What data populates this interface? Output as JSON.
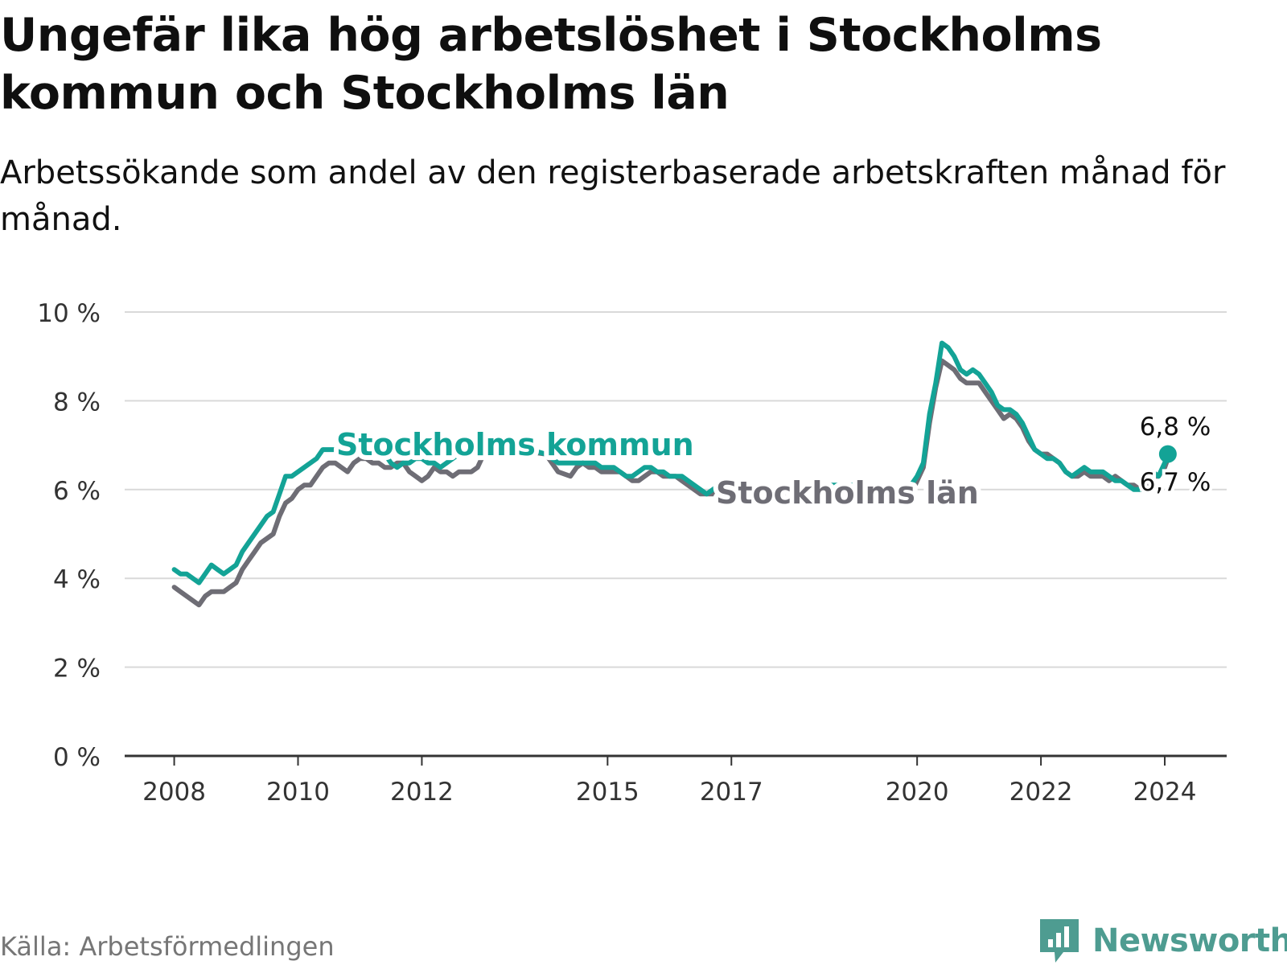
{
  "title": "Ungefär lika hög arbetslöshet i Stockholms kommun och Stockholms län",
  "subtitle": "Arbetssökande som andel av den registerbaserade arbetskraften månad för månad.",
  "source": "Källa: Arbetsförmedlingen",
  "brand": "Newsworthy",
  "colors": {
    "kommun": "#13a396",
    "lan": "#6e6d75",
    "grid": "#d9d9d9",
    "axis": "#333333"
  },
  "chart_data": {
    "type": "line",
    "title": "Ungefär lika hög arbetslöshet i Stockholms kommun och Stockholms län",
    "xlabel": "",
    "ylabel": "",
    "ylim": [
      0,
      10
    ],
    "xlim": [
      2007.2,
      2025.0
    ],
    "y_ticks": [
      0,
      2,
      4,
      6,
      8,
      10
    ],
    "y_tick_labels": [
      "0 %",
      "2 %",
      "4 %",
      "6 %",
      "8 %",
      "10 %"
    ],
    "x_ticks": [
      2008,
      2010,
      2012,
      2015,
      2017,
      2020,
      2022,
      2024
    ],
    "x_tick_labels": [
      "2008",
      "2010",
      "2012",
      "2015",
      "2017",
      "2020",
      "2022",
      "2024"
    ],
    "grid": true,
    "series": [
      {
        "name": "Stockholms kommun",
        "label": "Stockholms kommun",
        "color": "#13a396",
        "x": [
          2008.0,
          2008.1,
          2008.2,
          2008.3,
          2008.4,
          2008.5,
          2008.6,
          2008.7,
          2008.8,
          2008.9,
          2009.0,
          2009.1,
          2009.2,
          2009.3,
          2009.4,
          2009.5,
          2009.6,
          2009.7,
          2009.8,
          2009.9,
          2010.0,
          2010.1,
          2010.2,
          2010.3,
          2010.4,
          2010.5,
          2010.6,
          2010.7,
          2010.8,
          2010.9,
          2011.0,
          2011.1,
          2011.2,
          2011.3,
          2011.4,
          2011.5,
          2011.6,
          2011.7,
          2011.8,
          2011.9,
          2012.0,
          2012.1,
          2012.2,
          2012.3,
          2012.4,
          2012.5,
          2012.6,
          2012.7,
          2012.8,
          2012.9,
          2013.0,
          2013.5,
          2014.0,
          2014.2,
          2014.4,
          2014.5,
          2014.6,
          2014.7,
          2014.8,
          2014.9,
          2015.0,
          2015.1,
          2015.2,
          2015.3,
          2015.4,
          2015.5,
          2015.6,
          2015.7,
          2015.8,
          2015.9,
          2016.0,
          2016.1,
          2016.2,
          2016.3,
          2016.4,
          2016.5,
          2016.6,
          2016.7,
          2016.8,
          2016.9,
          2017.0,
          2017.5,
          2018.0,
          2018.5,
          2019.0,
          2019.5,
          2019.9,
          2020.0,
          2020.1,
          2020.2,
          2020.3,
          2020.4,
          2020.5,
          2020.6,
          2020.7,
          2020.8,
          2020.9,
          2021.0,
          2021.1,
          2021.2,
          2021.3,
          2021.4,
          2021.5,
          2021.6,
          2021.7,
          2021.8,
          2021.9,
          2022.0,
          2022.1,
          2022.2,
          2022.3,
          2022.4,
          2022.5,
          2022.6,
          2022.7,
          2022.8,
          2022.9,
          2023.0,
          2023.1,
          2023.2,
          2023.3,
          2023.4,
          2023.5,
          2023.6,
          2023.7,
          2023.8,
          2023.9,
          2024.0,
          2024.05
        ],
        "values": [
          4.2,
          4.1,
          4.1,
          4.0,
          3.9,
          4.1,
          4.3,
          4.2,
          4.1,
          4.2,
          4.3,
          4.6,
          4.8,
          5.0,
          5.2,
          5.4,
          5.5,
          5.9,
          6.3,
          6.3,
          6.4,
          6.5,
          6.6,
          6.7,
          6.9,
          6.9,
          6.9,
          6.8,
          6.9,
          7.1,
          7.2,
          7.3,
          7.1,
          7.0,
          6.8,
          6.6,
          6.5,
          6.6,
          6.6,
          6.7,
          6.7,
          6.6,
          6.6,
          6.5,
          6.6,
          6.7,
          6.8,
          6.9,
          6.9,
          7.0,
          7.0,
          7.0,
          6.8,
          6.6,
          6.6,
          6.6,
          6.6,
          6.6,
          6.6,
          6.5,
          6.5,
          6.5,
          6.4,
          6.3,
          6.3,
          6.4,
          6.5,
          6.5,
          6.4,
          6.4,
          6.3,
          6.3,
          6.3,
          6.2,
          6.1,
          6.0,
          5.9,
          6.0,
          6.1,
          6.1,
          6.1,
          6.0,
          6.0,
          6.1,
          6.1,
          6.0,
          6.1,
          6.3,
          6.6,
          7.7,
          8.4,
          9.3,
          9.2,
          9.0,
          8.7,
          8.6,
          8.7,
          8.6,
          8.4,
          8.2,
          7.9,
          7.8,
          7.8,
          7.7,
          7.5,
          7.2,
          6.9,
          6.8,
          6.7,
          6.7,
          6.6,
          6.4,
          6.3,
          6.4,
          6.5,
          6.4,
          6.4,
          6.4,
          6.3,
          6.2,
          6.2,
          6.1,
          6.0,
          6.0,
          6.2,
          6.4,
          6.3,
          6.6,
          6.8
        ]
      },
      {
        "name": "Stockholms län",
        "label": "Stockholms län",
        "color": "#6e6d75",
        "x": [
          2008.0,
          2008.1,
          2008.2,
          2008.3,
          2008.4,
          2008.5,
          2008.6,
          2008.7,
          2008.8,
          2008.9,
          2009.0,
          2009.1,
          2009.2,
          2009.3,
          2009.4,
          2009.5,
          2009.6,
          2009.7,
          2009.8,
          2009.9,
          2010.0,
          2010.1,
          2010.2,
          2010.3,
          2010.4,
          2010.5,
          2010.6,
          2010.7,
          2010.8,
          2010.9,
          2011.0,
          2011.1,
          2011.2,
          2011.3,
          2011.4,
          2011.5,
          2011.6,
          2011.7,
          2011.8,
          2011.9,
          2012.0,
          2012.1,
          2012.2,
          2012.3,
          2012.4,
          2012.5,
          2012.6,
          2012.7,
          2012.8,
          2012.9,
          2013.0,
          2013.5,
          2014.0,
          2014.2,
          2014.4,
          2014.5,
          2014.6,
          2014.7,
          2014.8,
          2014.9,
          2015.0,
          2015.1,
          2015.2,
          2015.3,
          2015.4,
          2015.5,
          2015.6,
          2015.7,
          2015.8,
          2015.9,
          2016.0,
          2016.1,
          2016.2,
          2016.3,
          2016.4,
          2016.5,
          2016.6,
          2016.7,
          2016.8,
          2016.9,
          2017.0,
          2017.5,
          2018.0,
          2018.5,
          2019.0,
          2019.5,
          2019.9,
          2020.0,
          2020.1,
          2020.2,
          2020.3,
          2020.4,
          2020.5,
          2020.6,
          2020.7,
          2020.8,
          2020.9,
          2021.0,
          2021.1,
          2021.2,
          2021.3,
          2021.4,
          2021.5,
          2021.6,
          2021.7,
          2021.8,
          2021.9,
          2022.0,
          2022.1,
          2022.2,
          2022.3,
          2022.4,
          2022.5,
          2022.6,
          2022.7,
          2022.8,
          2022.9,
          2023.0,
          2023.1,
          2023.2,
          2023.3,
          2023.4,
          2023.5,
          2023.6,
          2023.7,
          2023.8,
          2023.9,
          2024.0,
          2024.05
        ],
        "values": [
          3.8,
          3.7,
          3.6,
          3.5,
          3.4,
          3.6,
          3.7,
          3.7,
          3.7,
          3.8,
          3.9,
          4.2,
          4.4,
          4.6,
          4.8,
          4.9,
          5.0,
          5.4,
          5.7,
          5.8,
          6.0,
          6.1,
          6.1,
          6.3,
          6.5,
          6.6,
          6.6,
          6.5,
          6.4,
          6.6,
          6.7,
          6.7,
          6.6,
          6.6,
          6.5,
          6.5,
          6.6,
          6.6,
          6.4,
          6.3,
          6.2,
          6.3,
          6.5,
          6.4,
          6.4,
          6.3,
          6.4,
          6.4,
          6.4,
          6.5,
          6.8,
          6.9,
          6.8,
          6.4,
          6.3,
          6.5,
          6.6,
          6.5,
          6.5,
          6.4,
          6.4,
          6.4,
          6.4,
          6.3,
          6.2,
          6.2,
          6.3,
          6.4,
          6.4,
          6.3,
          6.3,
          6.3,
          6.2,
          6.1,
          6.0,
          5.9,
          5.9,
          5.9,
          6.0,
          6.0,
          5.9,
          5.9,
          5.8,
          5.9,
          5.9,
          5.8,
          5.9,
          6.2,
          6.5,
          7.5,
          8.3,
          8.9,
          8.8,
          8.7,
          8.5,
          8.4,
          8.4,
          8.4,
          8.2,
          8.0,
          7.8,
          7.6,
          7.7,
          7.6,
          7.4,
          7.1,
          6.9,
          6.8,
          6.8,
          6.7,
          6.6,
          6.4,
          6.3,
          6.3,
          6.4,
          6.3,
          6.3,
          6.3,
          6.2,
          6.3,
          6.2,
          6.1,
          6.1,
          6.0,
          6.1,
          6.3,
          6.3,
          6.5,
          6.7
        ]
      }
    ],
    "end_labels": [
      "6,8 %",
      "6,7 %"
    ]
  }
}
